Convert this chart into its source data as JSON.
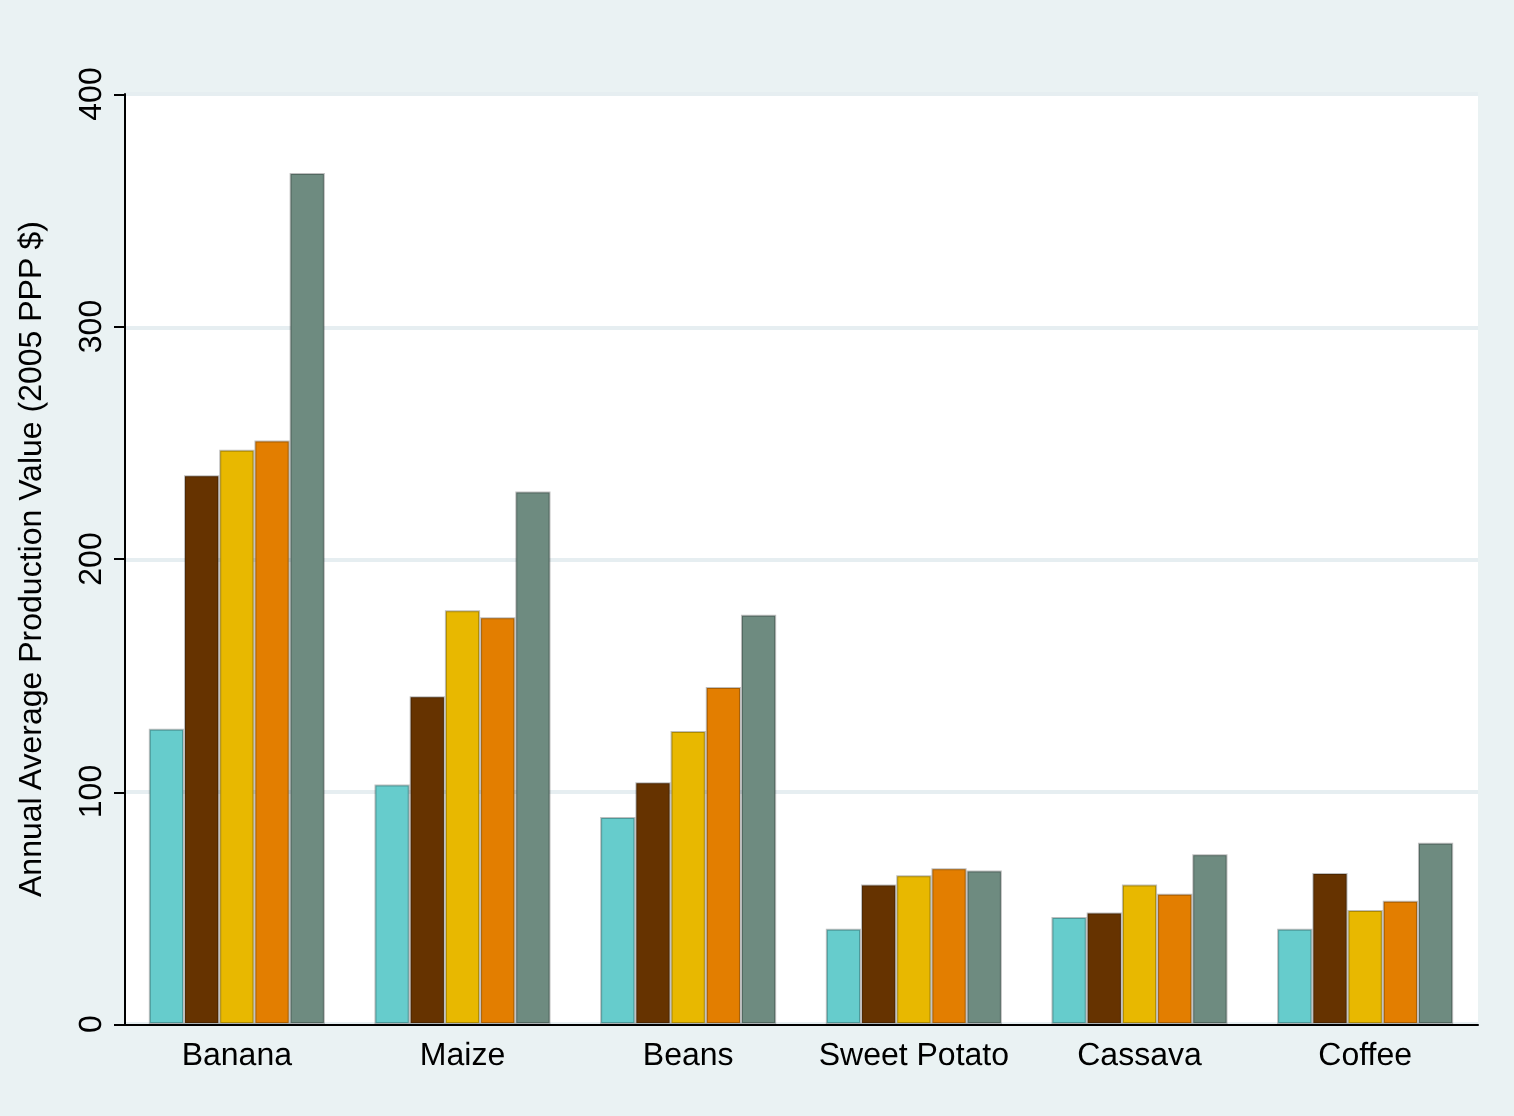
{
  "chart_data": {
    "type": "bar",
    "ylabel": "Annual Average Production Value (2005 PPP $)",
    "categories": [
      "Banana",
      "Maize",
      "Beans",
      "Sweet Potato",
      "Cassava",
      "Coffee"
    ],
    "series": [
      {
        "color": "#66cccc",
        "values": [
          127,
          103,
          89,
          41,
          46,
          41
        ]
      },
      {
        "color": "#663300",
        "values": [
          236,
          141,
          104,
          60,
          48,
          65
        ]
      },
      {
        "color": "#e8b800",
        "values": [
          247,
          178,
          126,
          64,
          60,
          49
        ]
      },
      {
        "color": "#e37e00",
        "values": [
          251,
          175,
          145,
          67,
          56,
          53
        ]
      },
      {
        "color": "#6e8b80",
        "values": [
          366,
          229,
          176,
          66,
          73,
          78
        ]
      }
    ],
    "ylim": [
      0,
      400
    ],
    "yticks": [
      0,
      100,
      200,
      300,
      400
    ],
    "grid": "y"
  }
}
